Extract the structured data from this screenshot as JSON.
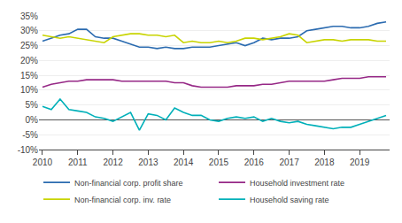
{
  "chart_data": {
    "type": "line",
    "x": [
      2010.0,
      2010.25,
      2010.5,
      2010.75,
      2011.0,
      2011.25,
      2011.5,
      2011.75,
      2012.0,
      2012.25,
      2012.5,
      2012.75,
      2013.0,
      2013.25,
      2013.5,
      2013.75,
      2014.0,
      2014.25,
      2014.5,
      2014.75,
      2015.0,
      2015.25,
      2015.5,
      2015.75,
      2016.0,
      2016.25,
      2016.5,
      2016.75,
      2017.0,
      2017.25,
      2017.5,
      2017.75,
      2018.0,
      2018.25,
      2018.5,
      2018.75,
      2019.0,
      2019.25,
      2019.5,
      2019.75
    ],
    "series": [
      {
        "name": "Non-financial corp. profit share",
        "color": "#2b6bb0",
        "values": [
          26.5,
          27.5,
          28.5,
          29.0,
          30.5,
          30.5,
          28.0,
          27.5,
          27.5,
          26.5,
          25.5,
          24.5,
          24.5,
          24.0,
          24.5,
          24.0,
          24.0,
          24.5,
          24.5,
          24.5,
          25.0,
          25.5,
          26.0,
          25.0,
          26.0,
          27.5,
          27.0,
          27.5,
          27.5,
          28.0,
          30.0,
          30.5,
          31.0,
          31.5,
          31.5,
          31.0,
          31.0,
          31.5,
          32.5,
          33.0
        ]
      },
      {
        "name": "Household investment rate",
        "color": "#962886",
        "values": [
          11.0,
          12.0,
          12.5,
          13.0,
          13.0,
          13.5,
          13.5,
          13.5,
          13.5,
          13.0,
          13.0,
          13.0,
          13.0,
          13.0,
          13.0,
          12.5,
          12.5,
          11.5,
          11.0,
          11.0,
          11.0,
          11.0,
          11.5,
          11.5,
          11.5,
          12.0,
          12.0,
          12.5,
          13.0,
          13.0,
          13.0,
          13.0,
          13.0,
          13.5,
          14.0,
          14.0,
          14.0,
          14.5,
          14.5,
          14.5
        ]
      },
      {
        "name": "Non-financial corp. inv. rate",
        "color": "#c8d400",
        "values": [
          28.5,
          28.0,
          27.5,
          28.0,
          27.5,
          27.0,
          26.5,
          26.0,
          28.0,
          28.5,
          29.0,
          29.0,
          28.5,
          28.5,
          28.0,
          28.5,
          26.0,
          26.5,
          26.0,
          26.0,
          26.5,
          26.0,
          26.5,
          27.5,
          27.5,
          27.0,
          27.5,
          28.0,
          29.0,
          28.5,
          26.0,
          26.5,
          27.0,
          27.0,
          26.5,
          27.0,
          27.0,
          27.0,
          26.5,
          26.5
        ]
      },
      {
        "name": "Household saving rate",
        "color": "#00b0b9",
        "values": [
          4.5,
          3.5,
          7.0,
          3.5,
          3.0,
          2.5,
          1.0,
          0.5,
          -0.5,
          1.0,
          2.5,
          -3.5,
          2.0,
          1.5,
          0.0,
          4.0,
          2.5,
          1.5,
          1.5,
          0.0,
          -0.5,
          0.5,
          1.0,
          0.5,
          1.0,
          -0.5,
          0.5,
          -0.5,
          -1.0,
          -0.5,
          -1.5,
          -2.0,
          -2.5,
          -3.0,
          -2.5,
          -2.5,
          -1.5,
          -0.5,
          0.5,
          1.5
        ]
      }
    ],
    "xlim": [
      2009.9,
      2019.85
    ],
    "xticks": [
      2010,
      2011,
      2012,
      2013,
      2014,
      2015,
      2016,
      2017,
      2018,
      2019
    ],
    "ylim": [
      -10,
      35
    ],
    "yticks": [
      {
        "value": -10,
        "label": "-10%"
      },
      {
        "value": -5,
        "label": "-5%"
      },
      {
        "value": 0,
        "label": "0%"
      },
      {
        "value": 5,
        "label": "5%"
      },
      {
        "value": 10,
        "label": "10%"
      },
      {
        "value": 15,
        "label": "15%"
      },
      {
        "value": 20,
        "label": "20%"
      },
      {
        "value": 25,
        "label": "25%"
      },
      {
        "value": 30,
        "label": "30%"
      },
      {
        "value": 35,
        "label": "35%"
      }
    ],
    "grid": true,
    "legend": "lower left"
  }
}
